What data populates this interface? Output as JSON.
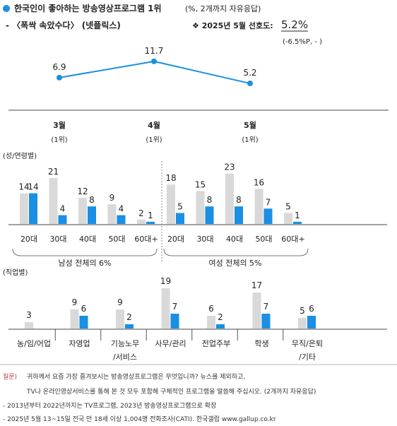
{
  "header": {
    "title_main": "한국인이 좋아하는 방송영상프로그램 1위",
    "title_note": "(%, 2개까지 자유응답)",
    "program": "- 〈폭싹 속았수다〉 (넷플릭스)",
    "pref_prefix": "❖ 2025년 5월 선호도:",
    "pref_value": "5.2%",
    "pref_change": "(-6.5%P, - )"
  },
  "colors": {
    "accent": "#1a8fe3",
    "gray": "#d9d9d9",
    "red": "#c0392b"
  },
  "chart_data": [
    {
      "type": "line",
      "categories": [
        "3월",
        "4월",
        "5월"
      ],
      "category_ranks": [
        "(1위)",
        "(1위)",
        "(1위)"
      ],
      "values": [
        6.9,
        11.7,
        5.2
      ]
    },
    {
      "type": "bar",
      "section_label": "(성/연령별)",
      "groups": [
        {
          "label": "남성 전체의 6%",
          "categories": [
            "20대",
            "30대",
            "40대",
            "50대",
            "60대+"
          ],
          "gray": [
            14,
            21,
            12,
            9,
            2
          ],
          "blue": [
            14,
            4,
            8,
            4,
            1
          ]
        },
        {
          "label": "여성 전체의 5%",
          "categories": [
            "20대",
            "30대",
            "40대",
            "50대",
            "60대+"
          ],
          "gray": [
            18,
            15,
            23,
            16,
            5
          ],
          "blue": [
            5,
            8,
            8,
            7,
            1
          ]
        }
      ]
    },
    {
      "type": "bar",
      "section_label": "(직업별)",
      "categories": [
        [
          "농/임/어업"
        ],
        [
          "자영업"
        ],
        [
          "기능노무",
          "/서비스"
        ],
        [
          "사무/관리"
        ],
        [
          "전업주부"
        ],
        [
          "학생"
        ],
        [
          "무직/은퇴",
          "/기타"
        ]
      ],
      "gray": [
        3,
        9,
        9,
        19,
        6,
        17,
        5
      ],
      "blue": [
        null,
        6,
        2,
        7,
        2,
        7,
        6
      ]
    }
  ],
  "footer": {
    "q_label": "질문)",
    "q_line1": "귀하께서 요즘 가장 즐겨보시는 방송영상프로그램은 무엇입니까? 뉴스를 제외하고,",
    "q_line2": "TV나 온라인영상서비스를 통해 본 것 모두 포함해 구체적인 프로그램을 말씀해 주십시오. (2개까지 자유응답)",
    "note1": "- 2013년부터 2022년까지는 TV프로그램, 2023년 방송영상프로그램으로 확장",
    "note2": "- 2025년 5월 13~15일 전국 만 18세 이상 1,004명 전화조사(CATI). 한국갤럽 www.gallup.co.kr"
  }
}
